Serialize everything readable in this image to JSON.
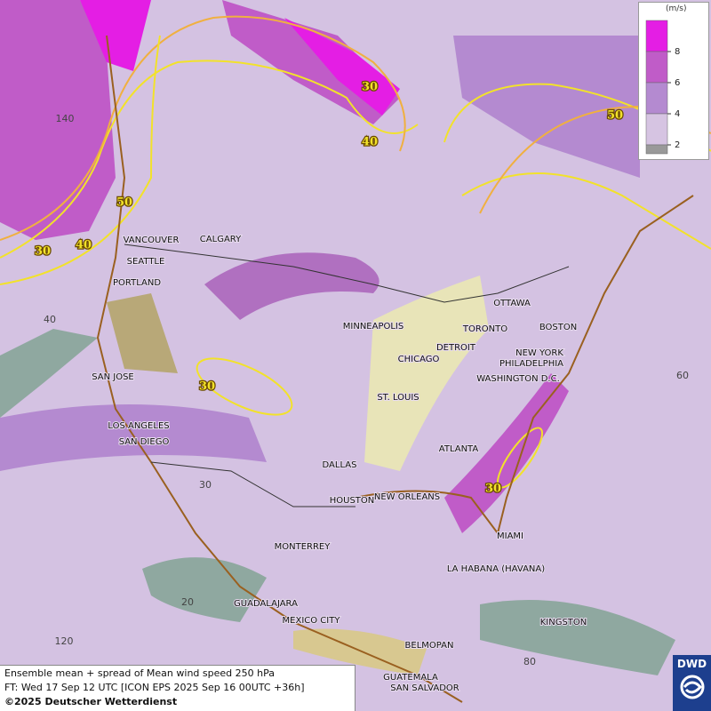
{
  "header": {
    "legend_unit": "(m/s)"
  },
  "legend": {
    "levels": [
      {
        "value": 8,
        "color": "#e41ee4"
      },
      {
        "value": 6,
        "color": "#c05cc8"
      },
      {
        "value": 4,
        "color": "#b48ad0"
      },
      {
        "value": 2,
        "color": "#d6c4e2"
      }
    ]
  },
  "cities": [
    "VANCOUVER",
    "CALGARY",
    "SEATTLE",
    "PORTLAND",
    "SAN JOSE",
    "LOS ANGELES",
    "SAN DIEGO",
    "DALLAS",
    "HOUSTON",
    "NEW ORLEANS",
    "MINNEAPOLIS",
    "CHICAGO",
    "ST. LOUIS",
    "DETROIT",
    "TORONTO",
    "OTTAWA",
    "BOSTON",
    "NEW YORK",
    "PHILADELPHIA",
    "WASHINGTON D.C.",
    "ATLANTA",
    "MIAMI",
    "MONTERREY",
    "LA HABANA (HAVANA)",
    "GUADALAJARA",
    "MEXICO CITY",
    "BELMOPAN",
    "KINGSTON",
    "GUATEMALA",
    "SAN SALVADOR"
  ],
  "contour_labels": [
    "30",
    "40",
    "50",
    "40",
    "30",
    "30",
    "30",
    "50"
  ],
  "graticule_labels": [
    "140",
    "40",
    "30",
    "20",
    "120",
    "60",
    "80"
  ],
  "footer": {
    "line1": "Ensemble mean + spread of Mean wind speed 250 hPa",
    "line2": "FT: Wed 17 Sep 12 UTC [ICON EPS 2025 Sep 16 00UTC +36h]",
    "line3": "©2025 Deutscher Wetterdienst"
  },
  "logo": "DWD"
}
